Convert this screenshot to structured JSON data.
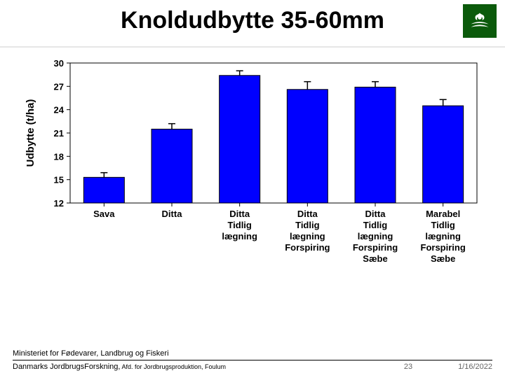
{
  "slide": {
    "title": "Knoldudbytte 35-60mm",
    "slide_number": "23",
    "date": "1/16/2022"
  },
  "footer": {
    "line1": "Ministeriet for Fødevarer, Landbrug og Fiskeri",
    "line2_main": "Danmarks JordbrugsForskning,",
    "line2_sub": " Afd. for Jordbrugsproduktion, Foulum"
  },
  "chart": {
    "type": "bar",
    "ylabel": "Udbytte (t/ha)",
    "label_fontsize": 15,
    "tick_fontsize": 13,
    "ylim": [
      12,
      30
    ],
    "yticks": [
      12,
      15,
      18,
      21,
      24,
      27,
      30
    ],
    "categories": [
      "Sava",
      "Ditta",
      "Ditta Tidlig lægning",
      "Ditta Tidlig lægning Forspiring",
      "Ditta Tidlig lægning Forspiring Sæbe",
      "Marabel Tidlig lægning Forspiring Sæbe"
    ],
    "values": [
      15.3,
      21.5,
      28.4,
      26.6,
      26.9,
      24.5
    ],
    "errors": [
      0.6,
      0.7,
      0.6,
      1.0,
      0.7,
      0.8
    ],
    "bar_color": "#0000ff",
    "axis_color": "#000000",
    "background_color": "#ffffff",
    "bar_width_ratio": 0.6,
    "error_cap_width": 10
  },
  "logo": {
    "name": "crown-wave-logo",
    "bg_color": "#0b5a0b",
    "fg_color": "#ffffff"
  }
}
